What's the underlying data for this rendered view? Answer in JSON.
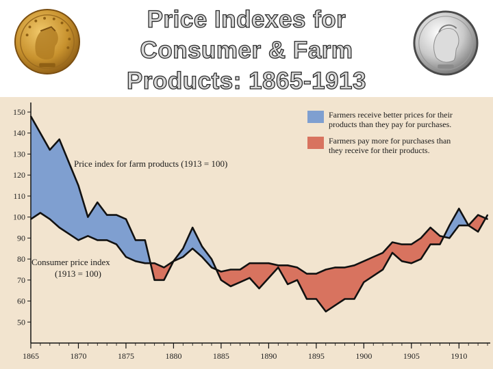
{
  "title_lines": [
    "Price Indexes for",
    "Consumer & Farm",
    "Products:  1865-1913"
  ],
  "colors": {
    "background": "#f2e4cf",
    "farm_above": "#7f9fd0",
    "farm_below": "#d8735f",
    "line": "#111111",
    "gold": "#c8922e",
    "silver": "#c9c9c9"
  },
  "icons": [
    "gold-coin-icon",
    "silver-coin-icon"
  ],
  "chart_data": {
    "type": "area",
    "title": "",
    "xlabel": "",
    "ylabel": "",
    "xlim": [
      1865,
      1913
    ],
    "ylim": [
      40,
      150
    ],
    "x_ticks": [
      1865,
      1870,
      1875,
      1880,
      1885,
      1890,
      1895,
      1900,
      1905,
      1910
    ],
    "y_ticks": [
      50,
      60,
      70,
      80,
      90,
      100,
      110,
      120,
      130,
      140,
      150
    ],
    "grid": false,
    "legend_position": "top-right",
    "legend": [
      {
        "text": [
          "Farmers receive better prices for their",
          "products than they pay for purchases."
        ],
        "color_key": "farm_above"
      },
      {
        "text": [
          "Farmers pay more for purchases than",
          "they receive for their products."
        ],
        "color_key": "farm_below"
      }
    ],
    "annotations": {
      "farm_label": "Price index for farm products (1913 = 100)",
      "consumer_label": [
        "Consumer price index",
        "(1913 = 100)"
      ]
    },
    "series": [
      {
        "name": "Price index for farm products (1913 = 100)",
        "x": [
          1865,
          1867,
          1868,
          1870,
          1871,
          1872,
          1873,
          1874,
          1875,
          1876,
          1877,
          1878,
          1879,
          1880,
          1881,
          1882,
          1883,
          1884,
          1885,
          1886,
          1887,
          1888,
          1889,
          1890,
          1891,
          1892,
          1893,
          1894,
          1895,
          1896,
          1897,
          1898,
          1899,
          1900,
          1901,
          1902,
          1903,
          1904,
          1905,
          1906,
          1907,
          1908,
          1909,
          1910,
          1911,
          1912,
          1913
        ],
        "values": [
          148,
          132,
          137,
          115,
          100,
          107,
          101,
          101,
          99,
          89,
          89,
          70,
          70,
          79,
          85,
          95,
          86,
          80,
          70,
          67,
          69,
          71,
          66,
          71,
          76,
          68,
          70,
          61,
          61,
          55,
          58,
          61,
          61,
          69,
          72,
          75,
          83,
          79,
          78,
          80,
          87,
          87,
          96,
          104,
          96,
          93,
          101
        ]
      },
      {
        "name": "Consumer price index (1913 = 100)",
        "x": [
          1865,
          1866,
          1867,
          1868,
          1869,
          1870,
          1871,
          1872,
          1873,
          1874,
          1875,
          1876,
          1877,
          1878,
          1879,
          1880,
          1881,
          1882,
          1883,
          1884,
          1885,
          1886,
          1887,
          1888,
          1889,
          1890,
          1891,
          1892,
          1893,
          1894,
          1895,
          1896,
          1897,
          1898,
          1899,
          1900,
          1901,
          1902,
          1903,
          1904,
          1905,
          1906,
          1907,
          1908,
          1909,
          1910,
          1911,
          1912,
          1913
        ],
        "values": [
          99,
          102,
          99,
          95,
          92,
          89,
          91,
          89,
          89,
          87,
          81,
          79,
          78,
          78,
          76,
          79,
          81,
          85,
          81,
          76,
          74,
          75,
          75,
          78,
          78,
          78,
          77,
          77,
          76,
          73,
          73,
          75,
          76,
          76,
          77,
          79,
          81,
          83,
          88,
          87,
          87,
          90,
          95,
          91,
          90,
          96,
          96,
          101,
          99
        ]
      }
    ]
  }
}
